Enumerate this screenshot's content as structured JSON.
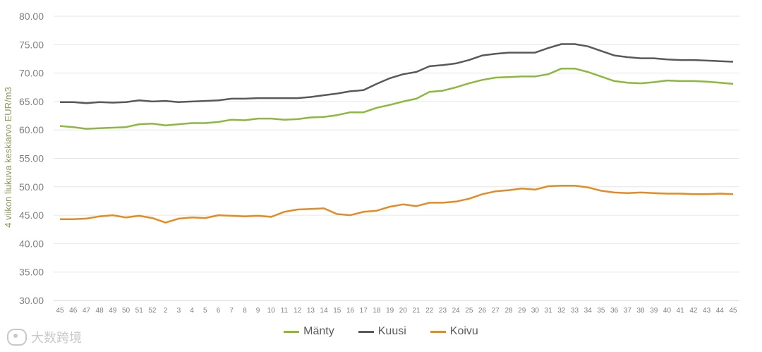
{
  "chart_data": {
    "type": "line",
    "title": "",
    "xlabel": "",
    "ylabel": "4 viikon liukuva keskiarvo EUR/m3",
    "ylim": [
      30,
      80
    ],
    "yticks": [
      "30.00",
      "35.00",
      "40.00",
      "45.00",
      "50.00",
      "55.00",
      "60.00",
      "65.00",
      "70.00",
      "75.00",
      "80.00"
    ],
    "grid": true,
    "legend_position": "bottom",
    "categories": [
      "45",
      "46",
      "47",
      "48",
      "49",
      "50",
      "51",
      "52",
      "2",
      "3",
      "4",
      "5",
      "6",
      "7",
      "8",
      "9",
      "10",
      "11",
      "12",
      "13",
      "14",
      "15",
      "16",
      "17",
      "18",
      "19",
      "20",
      "21",
      "22",
      "23",
      "24",
      "25",
      "26",
      "27",
      "28",
      "29",
      "30",
      "31",
      "32",
      "33",
      "34",
      "35",
      "36",
      "37",
      "38",
      "39",
      "40",
      "41",
      "42",
      "43",
      "44",
      "45"
    ],
    "series": [
      {
        "name": "Mänty",
        "color": "#8cb83c",
        "values": [
          60.7,
          60.5,
          60.2,
          60.3,
          60.4,
          60.5,
          61.0,
          61.1,
          60.8,
          61.0,
          61.2,
          61.2,
          61.4,
          61.8,
          61.7,
          62.0,
          62.0,
          61.8,
          61.9,
          62.2,
          62.3,
          62.6,
          63.1,
          63.1,
          63.9,
          64.4,
          65.0,
          65.5,
          66.7,
          66.9,
          67.5,
          68.2,
          68.8,
          69.2,
          69.3,
          69.4,
          69.4,
          69.8,
          70.8,
          70.8,
          70.2,
          69.4,
          68.6,
          68.3,
          68.2,
          68.4,
          68.7,
          68.6,
          68.6,
          68.5,
          68.3,
          68.1
        ]
      },
      {
        "name": "Kuusi",
        "color": "#595959",
        "values": [
          64.9,
          64.9,
          64.7,
          64.9,
          64.8,
          64.9,
          65.2,
          65.0,
          65.1,
          64.9,
          65.0,
          65.1,
          65.2,
          65.5,
          65.5,
          65.6,
          65.6,
          65.6,
          65.6,
          65.8,
          66.1,
          66.4,
          66.8,
          67.0,
          68.1,
          69.1,
          69.8,
          70.2,
          71.2,
          71.4,
          71.7,
          72.3,
          73.1,
          73.4,
          73.6,
          73.6,
          73.6,
          74.4,
          75.1,
          75.1,
          74.7,
          73.9,
          73.1,
          72.8,
          72.6,
          72.6,
          72.4,
          72.3,
          72.3,
          72.2,
          72.1,
          72.0
        ]
      },
      {
        "name": "Koivu",
        "color": "#e58b22",
        "values": [
          44.3,
          44.3,
          44.4,
          44.8,
          45.0,
          44.6,
          44.9,
          44.5,
          43.7,
          44.4,
          44.6,
          44.5,
          45.0,
          44.9,
          44.8,
          44.9,
          44.7,
          45.6,
          46.0,
          46.1,
          46.2,
          45.2,
          45.0,
          45.6,
          45.8,
          46.5,
          46.9,
          46.6,
          47.2,
          47.2,
          47.4,
          47.9,
          48.7,
          49.2,
          49.4,
          49.7,
          49.5,
          50.1,
          50.2,
          50.2,
          49.9,
          49.3,
          49.0,
          48.9,
          49.0,
          48.9,
          48.8,
          48.8,
          48.7,
          48.7,
          48.8,
          48.7
        ]
      }
    ]
  },
  "watermark": {
    "text": "大数跨境",
    "icon": "watermark-logo-icon"
  }
}
